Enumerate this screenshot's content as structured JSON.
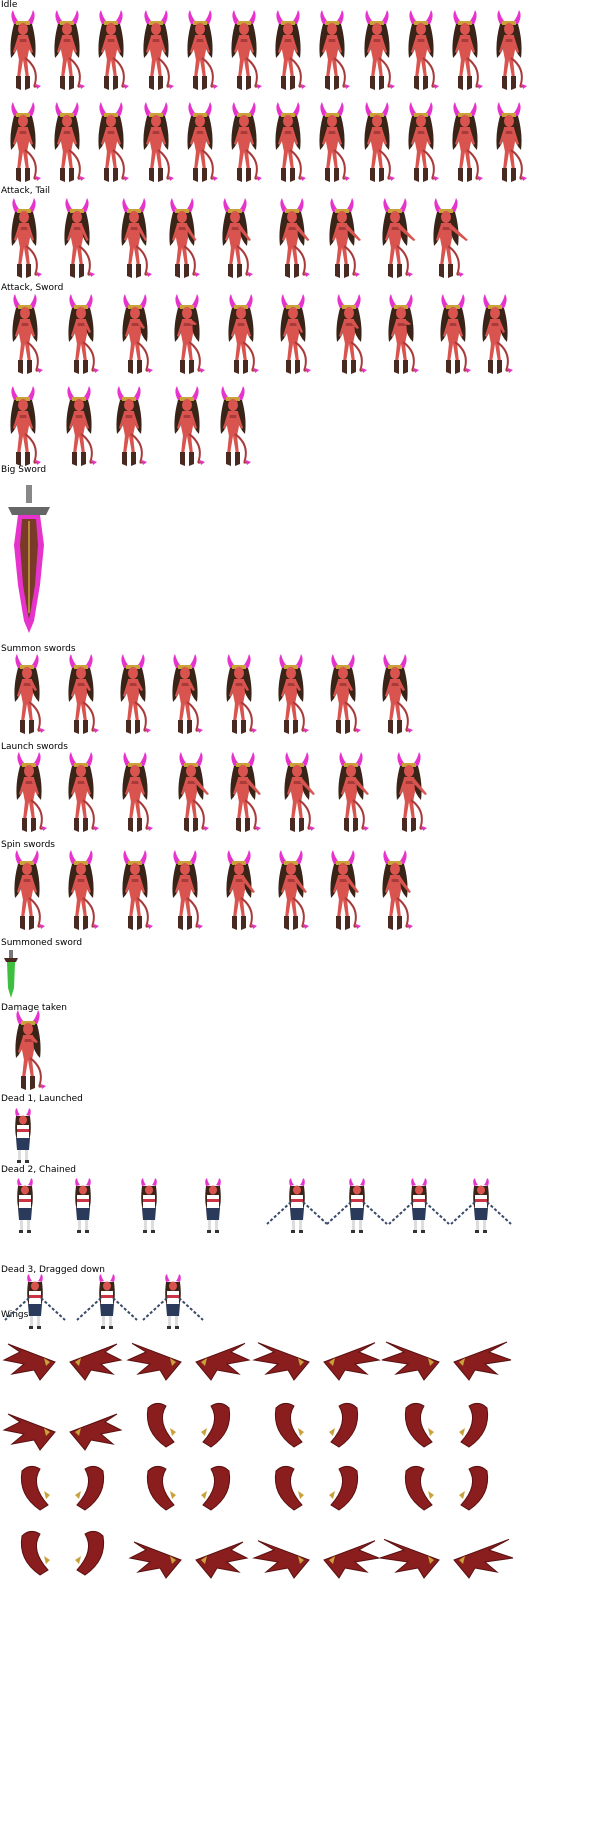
{
  "sheet": {
    "sections": [
      {
        "id": "idle",
        "label": "Idle"
      },
      {
        "id": "attack_tail",
        "label": "Attack, Tail"
      },
      {
        "id": "attack_sword",
        "label": "Attack, Sword"
      },
      {
        "id": "big_sword",
        "label": "Big Sword"
      },
      {
        "id": "summon_swords",
        "label": "Summon swords"
      },
      {
        "id": "launch_swords",
        "label": "Launch swords"
      },
      {
        "id": "spin_swords",
        "label": "Spin swords"
      },
      {
        "id": "summoned_sword",
        "label": "Summoned sword"
      },
      {
        "id": "damage_taken",
        "label": "Damage taken"
      },
      {
        "id": "dead1",
        "label": "Dead 1, Launched"
      },
      {
        "id": "dead2",
        "label": "Dead 2, Chained"
      },
      {
        "id": "dead3",
        "label": "Dead 3, Dragged down"
      },
      {
        "id": "wings",
        "label": "Wings"
      }
    ]
  },
  "colors": {
    "skin": "#d9544f",
    "skin_dark": "#a83a3a",
    "hair": "#3a2418",
    "horn": "#e633cc",
    "gold": "#c9a23a",
    "boot": "#4a2a20",
    "wing": "#8a1e1e",
    "wing_dark": "#5a1010",
    "sword_glow": "#e633cc",
    "green_sword": "#3fbf3f",
    "chain": "#3a4a6a",
    "captive_outfit": "#2a3a5a"
  }
}
